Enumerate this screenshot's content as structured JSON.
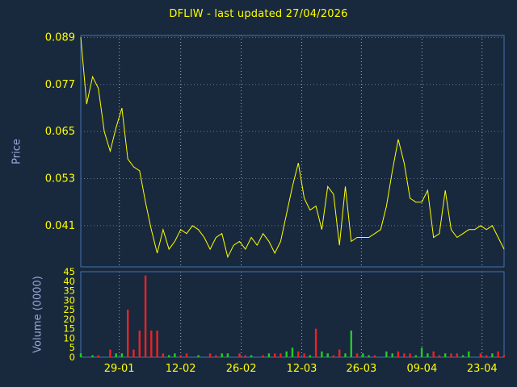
{
  "title": "DFLIW - last updated 27/04/2026",
  "colors": {
    "background": "#18293e",
    "title": "#ffff00",
    "tick_labels": "#ffff00",
    "axis_titles": "#9aa8d8",
    "grid": "#b8c4d0",
    "frame": "#4472b0",
    "price_line": "#ffff00",
    "volume_up": "#22cc22",
    "volume_down": "#ee2222"
  },
  "chart_data": [
    {
      "type": "line",
      "title": "DFLIW - last updated 27/04/2026",
      "ylabel": "Price",
      "xlabel": "",
      "grid": true,
      "ylim": [
        0.0305,
        0.0895
      ],
      "yticks": [
        0.041,
        0.053,
        0.065,
        0.077,
        0.089
      ],
      "ytick_labels": [
        "0.041",
        "0.053",
        "0.065",
        "0.077",
        "0.089"
      ],
      "xtick_labels": [
        "29-01",
        "12-02",
        "26-02",
        "12-03",
        "26-03",
        "09-04",
        "23-04"
      ],
      "xtick_positions": [
        0.091,
        0.236,
        0.379,
        0.522,
        0.663,
        0.806,
        0.948
      ],
      "series": [
        {
          "name": "DFLIW price",
          "color": "#ffff00",
          "values": [
            0.089,
            0.072,
            0.079,
            0.076,
            0.065,
            0.06,
            0.066,
            0.071,
            0.058,
            0.056,
            0.055,
            0.047,
            0.04,
            0.034,
            0.04,
            0.035,
            0.037,
            0.04,
            0.039,
            0.041,
            0.04,
            0.038,
            0.035,
            0.038,
            0.039,
            0.033,
            0.036,
            0.037,
            0.035,
            0.038,
            0.036,
            0.039,
            0.037,
            0.034,
            0.037,
            0.044,
            0.051,
            0.057,
            0.048,
            0.045,
            0.046,
            0.04,
            0.051,
            0.049,
            0.036,
            0.051,
            0.037,
            0.038,
            0.038,
            0.038,
            0.039,
            0.04,
            0.046,
            0.055,
            0.063,
            0.057,
            0.048,
            0.047,
            0.047,
            0.05,
            0.038,
            0.039,
            0.05,
            0.04,
            0.038,
            0.039,
            0.04,
            0.04,
            0.041,
            0.04,
            0.041,
            0.038,
            0.035
          ]
        }
      ]
    },
    {
      "type": "bar",
      "ylabel": "Volume (0000)",
      "xlabel": "",
      "grid": true,
      "ylim": [
        0,
        45
      ],
      "yticks": [
        0,
        5,
        10,
        15,
        20,
        25,
        30,
        35,
        40,
        45
      ],
      "values": [
        2,
        0,
        1,
        1,
        0,
        4,
        2,
        2,
        25,
        4,
        14,
        43,
        14,
        14,
        2,
        1,
        2,
        1,
        2,
        0,
        1,
        0,
        2,
        1,
        2,
        2,
        0,
        2,
        1,
        1,
        0,
        1,
        2,
        2,
        2,
        3,
        5,
        3,
        2,
        1,
        15,
        3,
        2,
        1,
        4,
        2,
        14,
        2,
        2,
        1,
        1,
        0,
        3,
        2,
        3,
        2,
        2,
        1,
        5,
        2,
        3,
        1,
        2,
        2,
        2,
        1,
        3,
        0,
        2,
        1,
        2,
        3,
        1
      ],
      "directions": [
        "up",
        "none",
        "up",
        "down",
        "none",
        "down",
        "up",
        "up",
        "down",
        "down",
        "down",
        "down",
        "down",
        "down",
        "down",
        "up",
        "up",
        "down",
        "down",
        "none",
        "up",
        "none",
        "down",
        "down",
        "up",
        "up",
        "none",
        "down",
        "down",
        "up",
        "none",
        "down",
        "up",
        "down",
        "down",
        "up",
        "up",
        "down",
        "down",
        "up",
        "down",
        "up",
        "up",
        "down",
        "down",
        "up",
        "up",
        "down",
        "up",
        "up",
        "down",
        "none",
        "up",
        "up",
        "down",
        "down",
        "down",
        "up",
        "up",
        "up",
        "down",
        "down",
        "up",
        "down",
        "down",
        "up",
        "up",
        "none",
        "down",
        "down",
        "up",
        "down",
        "down"
      ]
    }
  ]
}
